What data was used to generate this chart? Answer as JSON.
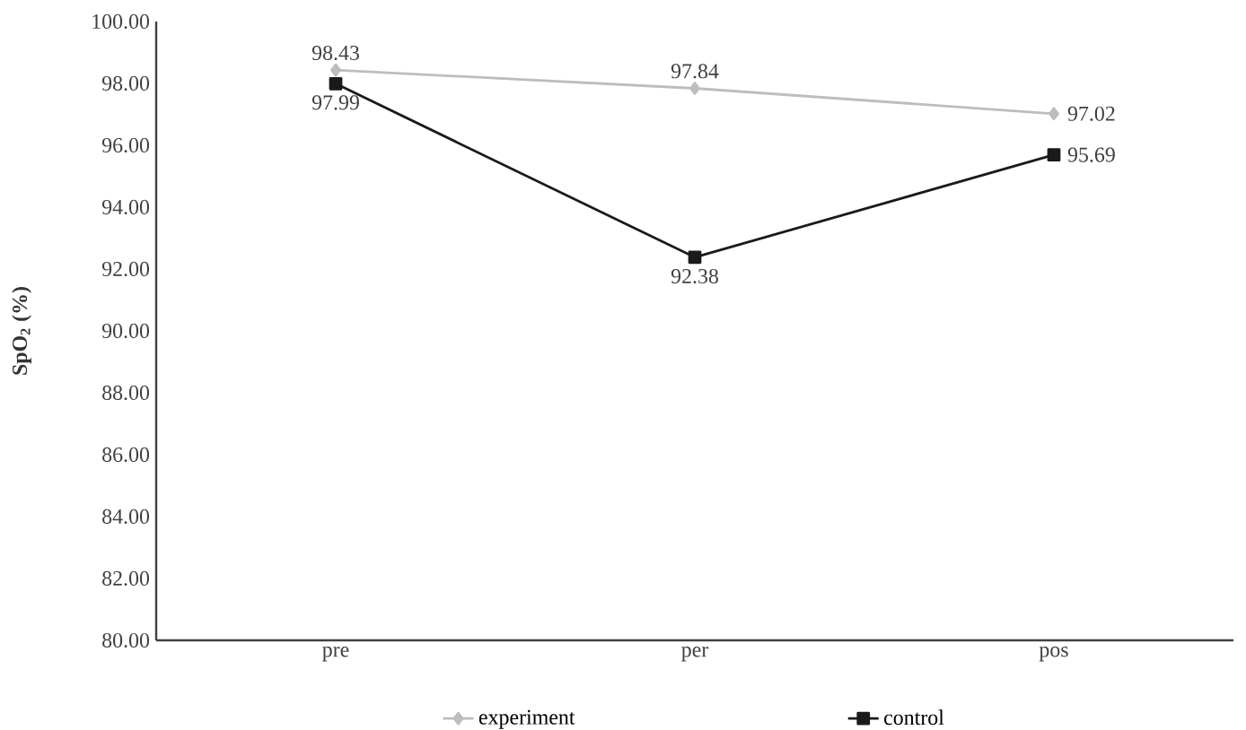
{
  "chart_data": {
    "type": "line",
    "ylabel": "SpO$_{2}$ (%)",
    "categories": [
      "pre",
      "per",
      "pos"
    ],
    "series": [
      {
        "name": "experiment",
        "color": "#bdbdbd",
        "marker": "diamond",
        "values": [
          98.43,
          97.84,
          97.02
        ],
        "value_labels": [
          "98.43",
          "97.84",
          "97.02"
        ]
      },
      {
        "name": "control",
        "color": "#1a1a1a",
        "marker": "square",
        "values": [
          97.99,
          92.38,
          95.69
        ],
        "value_labels": [
          "97.99",
          "92.38",
          "95.69"
        ]
      }
    ],
    "ylim": [
      80,
      100
    ],
    "yticks": [
      {
        "value": 80,
        "label": "80.00"
      },
      {
        "value": 82,
        "label": "82.00"
      },
      {
        "value": 84,
        "label": "84.00"
      },
      {
        "value": 86,
        "label": "86.00"
      },
      {
        "value": 88,
        "label": "88.00"
      },
      {
        "value": 90,
        "label": "90.00"
      },
      {
        "value": 92,
        "label": "92.00"
      },
      {
        "value": 94,
        "label": "94.00"
      },
      {
        "value": 96,
        "label": "96.00"
      },
      {
        "value": 98,
        "label": "98.00"
      },
      {
        "value": 100,
        "label": "100.00"
      }
    ],
    "grid": false,
    "legend": "bottom",
    "line_style": "solid"
  }
}
